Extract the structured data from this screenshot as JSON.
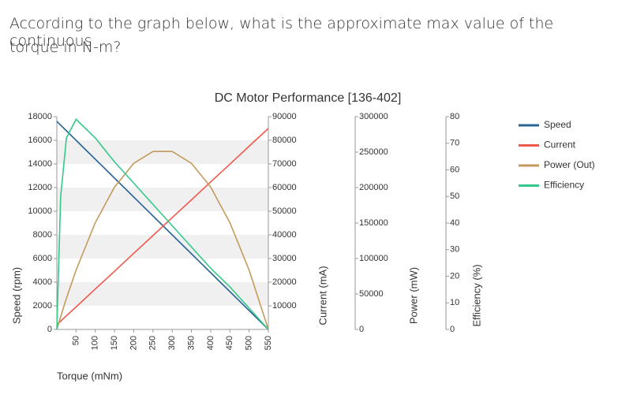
{
  "question": [
    "According to the graph below, what is the approximate max value of the continuous",
    "torque in N-m?"
  ],
  "chart_data": {
    "type": "line",
    "title": "DC Motor Performance [136-402]",
    "x_label": "Torque (mNm)",
    "x": [
      0,
      10,
      25,
      50,
      100,
      150,
      200,
      250,
      300,
      350,
      400,
      450,
      500,
      550
    ],
    "xlim": [
      0,
      550
    ],
    "xticks": [
      50,
      100,
      150,
      200,
      250,
      300,
      350,
      400,
      450,
      500,
      550
    ],
    "y_label": "Speed (rpm)",
    "ylim": [
      0,
      18000
    ],
    "yticks": [
      0,
      2000,
      4000,
      6000,
      8000,
      10000,
      12000,
      14000,
      16000,
      18000
    ],
    "y2_label": "Current (mA)",
    "y2lim": [
      0,
      90000
    ],
    "y2ticks": [
      10000,
      20000,
      30000,
      40000,
      50000,
      60000,
      70000,
      80000,
      90000
    ],
    "y3_label": "Power (mW)",
    "y3lim": [
      0,
      300000
    ],
    "y3ticks": [
      0,
      50000,
      100000,
      150000,
      200000,
      250000,
      300000
    ],
    "y4_label": "Efficiency (%)",
    "y4lim": [
      0,
      80
    ],
    "y4ticks": [
      0,
      10,
      20,
      30,
      40,
      50,
      60,
      70,
      80
    ],
    "grid": true,
    "series": [
      {
        "name": "Speed",
        "color": "#2a6496",
        "values": [
          17600,
          17280,
          16800,
          16000,
          14400,
          12800,
          11200,
          9600,
          8000,
          6400,
          4800,
          3200,
          1600,
          0
        ]
      },
      {
        "name": "Current",
        "color": "#f0584c",
        "axis": "y2",
        "values": [
          2000,
          3500,
          5800,
          9500,
          17100,
          24600,
          32200,
          39700,
          47300,
          54800,
          62400,
          69900,
          77500,
          85000
        ]
      },
      {
        "name": "Power (Out)",
        "color": "#c49a5c",
        "axis": "y3",
        "values": [
          0,
          18100,
          43900,
          83600,
          150500,
          200700,
          234200,
          250900,
          250900,
          234200,
          200700,
          150500,
          83600,
          0
        ]
      },
      {
        "name": "Efficiency",
        "color": "#34c98b",
        "axis": "y4",
        "values": [
          0,
          50,
          72,
          79,
          72,
          63,
          55,
          47,
          39,
          31,
          23,
          16,
          8,
          0
        ]
      }
    ]
  }
}
